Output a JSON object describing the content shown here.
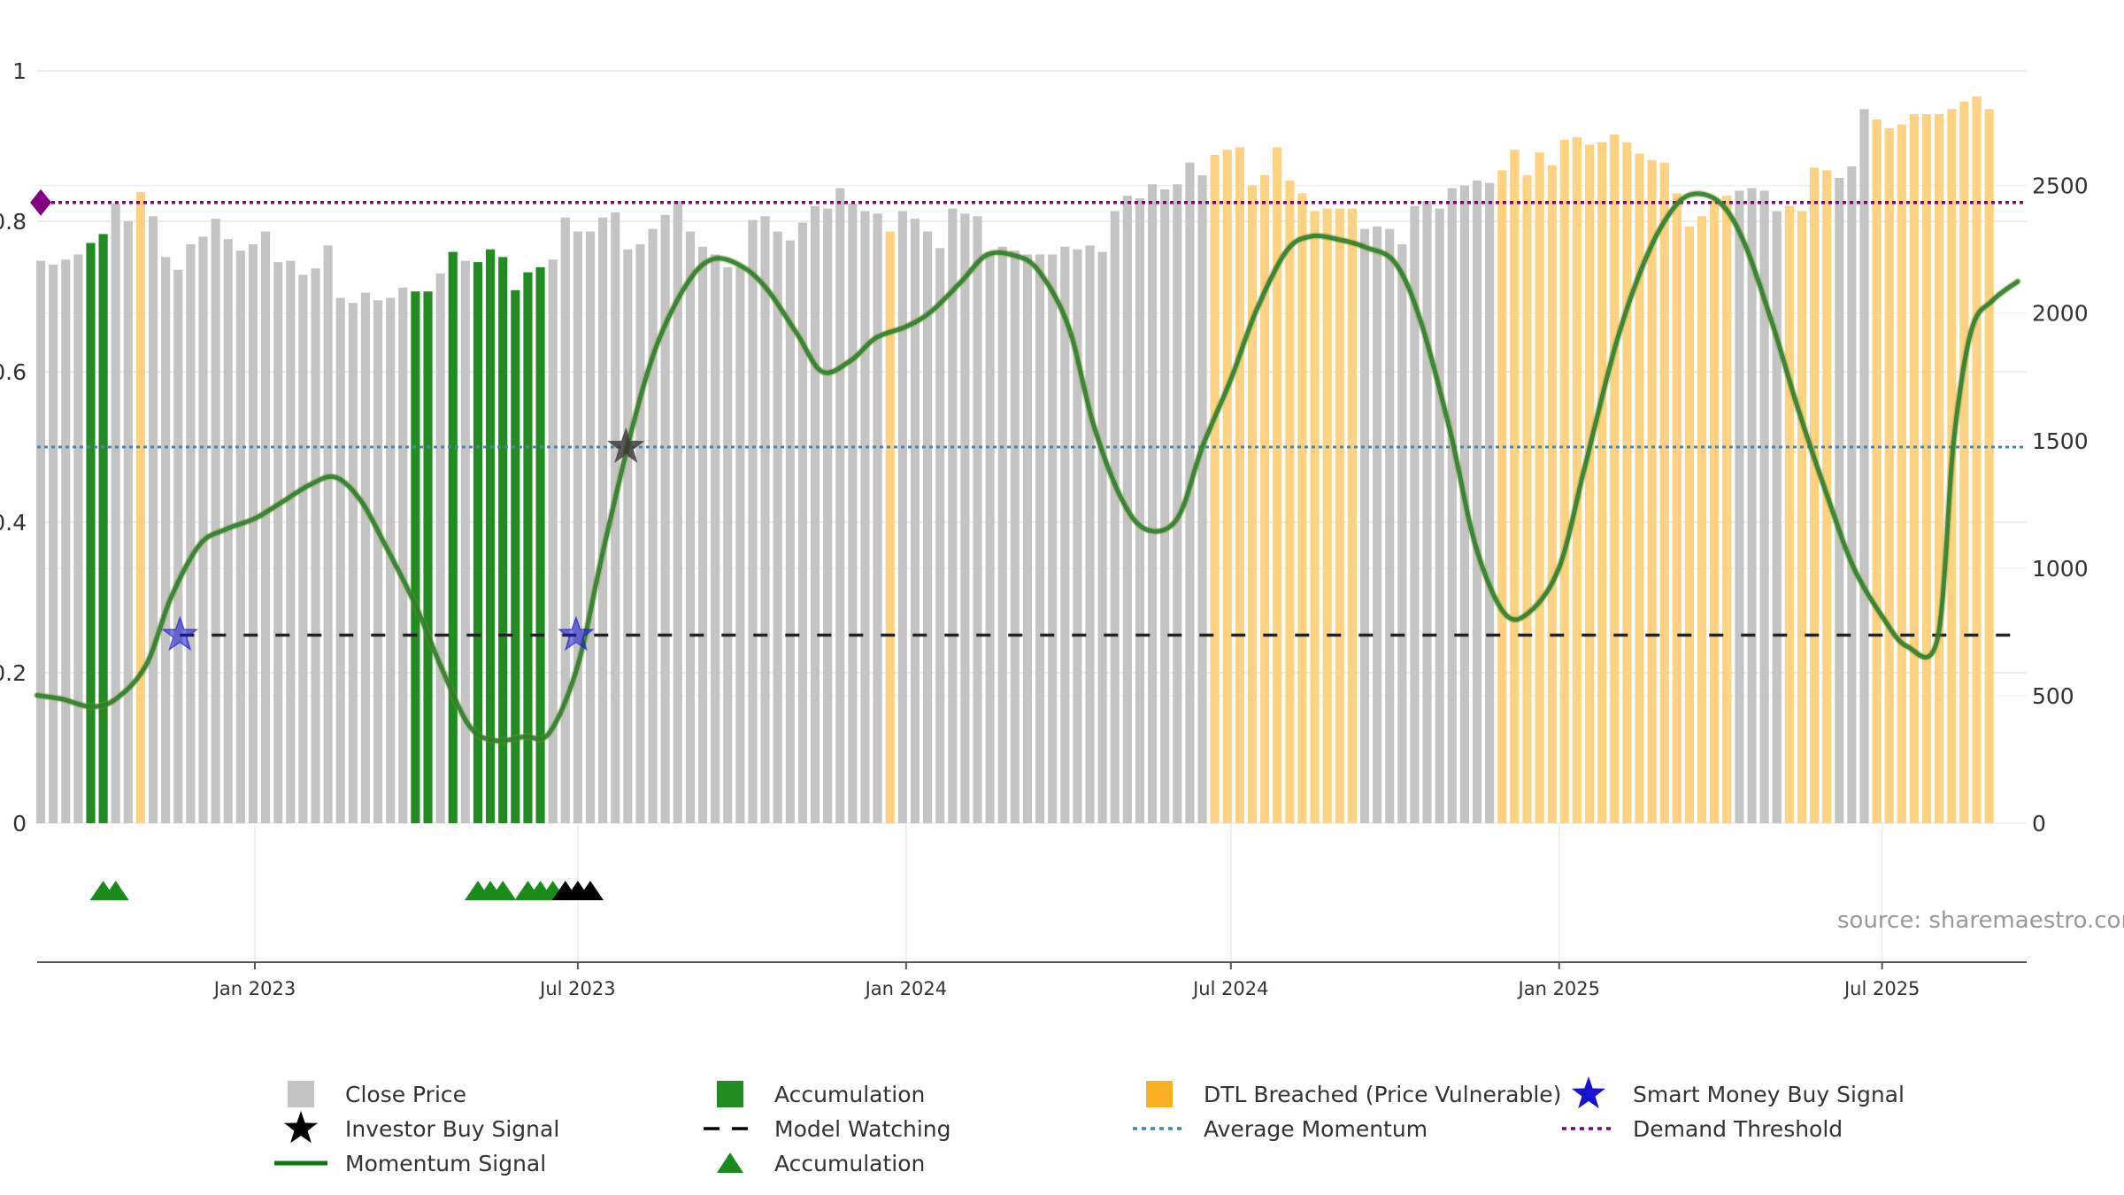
{
  "chart_data": {
    "type": "bar",
    "source": "source: sharemaestro.com",
    "colors": {
      "close_price": "#c4c4c4",
      "accumulation": "#228b22",
      "dtl_breached": "#fdd283",
      "momentum": "#2e7d32",
      "momentum_highlight": "#7a9a10",
      "average_momentum": "#4a86a8",
      "demand_threshold": "#800080",
      "model_watching": "#222222",
      "smart_money": "#1515d0",
      "investor_star": "#333333",
      "triangle_green": "#1a8a1a",
      "triangle_black": "#000000"
    },
    "left_axis": {
      "min": 0,
      "max": 1,
      "ticks": [
        "0",
        "0.2",
        "0.4",
        "0.6",
        "0.8",
        "1"
      ]
    },
    "right_axis": {
      "min": 0,
      "max": 2950,
      "ticks": [
        "0",
        "500",
        "1000",
        "1500",
        "2000",
        "2500"
      ]
    },
    "x_axis": {
      "start": "2022-09-01",
      "end": "2025-09-20",
      "ticks": [
        {
          "date": "2023-01-01",
          "label": "Jan 2023"
        },
        {
          "date": "2023-07-01",
          "label": "Jul 2023"
        },
        {
          "date": "2024-01-01",
          "label": "Jan 2024"
        },
        {
          "date": "2024-07-01",
          "label": "Jul 2024"
        },
        {
          "date": "2025-01-01",
          "label": "Jan 2025"
        },
        {
          "date": "2025-07-01",
          "label": "Jul 2025"
        }
      ]
    },
    "close_price": {
      "start": "2022-09-03",
      "interval_days": 7,
      "values": [
        2205,
        2190,
        2210,
        2230,
        2275,
        2310,
        2430,
        2360,
        2475,
        2380,
        2220,
        2170,
        2270,
        2300,
        2370,
        2290,
        2245,
        2270,
        2320,
        2200,
        2205,
        2150,
        2175,
        2265,
        2060,
        2040,
        2080,
        2050,
        2060,
        2100,
        2085,
        2085,
        2155,
        2240,
        2205,
        2200,
        2250,
        2220,
        2090,
        2160,
        2180,
        2210,
        2375,
        2320,
        2320,
        2375,
        2395,
        2250,
        2270,
        2330,
        2385,
        2440,
        2320,
        2260,
        2230,
        2180,
        2180,
        2365,
        2380,
        2320,
        2285,
        2355,
        2420,
        2410,
        2490,
        2430,
        2400,
        2390,
        2320,
        2400,
        2370,
        2320,
        2255,
        2410,
        2390,
        2380,
        2240,
        2260,
        2245,
        2230,
        2230,
        2230,
        2260,
        2250,
        2265,
        2240,
        2400,
        2460,
        2450,
        2505,
        2485,
        2505,
        2590,
        2540,
        2620,
        2640,
        2650,
        2500,
        2540,
        2650,
        2520,
        2470,
        2400,
        2410,
        2410,
        2410,
        2330,
        2340,
        2330,
        2270,
        2420,
        2440,
        2410,
        2490,
        2500,
        2520,
        2510,
        2560,
        2640,
        2540,
        2630,
        2580,
        2680,
        2690,
        2660,
        2670,
        2700,
        2670,
        2625,
        2600,
        2590,
        2470,
        2340,
        2380,
        2440,
        2460,
        2480,
        2490,
        2480,
        2400,
        2420,
        2400,
        2570,
        2560,
        2530,
        2575,
        2800,
        2760,
        2725,
        2740,
        2780,
        2780,
        2780,
        2800,
        2830,
        2850,
        2800
      ],
      "categories": "GGGGAAGGDGGGGGGGGGGGGGGGGGGGGGAAGAGAAAAAAGGGGGGGGGGGGGGGGGGGGGGGGGGGDGGGGGGGGGGGGGGGGGGGGGGGGGDDDDDDDDDDDDGGGGGGGGGGGDDDDDDDDDDDDDDDDDDDGGGGDDDDGGGDDDDDDDDDDDDDD"
    },
    "momentum_signal": {
      "points": [
        [
          "2022-09-01",
          0.17
        ],
        [
          "2022-09-15",
          0.165
        ],
        [
          "2022-10-01",
          0.155
        ],
        [
          "2022-10-15",
          0.165
        ],
        [
          "2022-11-01",
          0.21
        ],
        [
          "2022-11-15",
          0.3
        ],
        [
          "2022-12-01",
          0.37
        ],
        [
          "2022-12-15",
          0.39
        ],
        [
          "2023-01-01",
          0.405
        ],
        [
          "2023-01-15",
          0.425
        ],
        [
          "2023-02-01",
          0.45
        ],
        [
          "2023-02-15",
          0.46
        ],
        [
          "2023-03-01",
          0.43
        ],
        [
          "2023-03-15",
          0.37
        ],
        [
          "2023-04-01",
          0.29
        ],
        [
          "2023-04-15",
          0.21
        ],
        [
          "2023-05-01",
          0.13
        ],
        [
          "2023-05-15",
          0.11
        ],
        [
          "2023-06-01",
          0.115
        ],
        [
          "2023-06-15",
          0.12
        ],
        [
          "2023-07-01",
          0.21
        ],
        [
          "2023-07-15",
          0.36
        ],
        [
          "2023-08-01",
          0.53
        ],
        [
          "2023-08-15",
          0.64
        ],
        [
          "2023-09-01",
          0.72
        ],
        [
          "2023-09-15",
          0.75
        ],
        [
          "2023-10-01",
          0.74
        ],
        [
          "2023-10-15",
          0.71
        ],
        [
          "2023-11-01",
          0.65
        ],
        [
          "2023-11-15",
          0.6
        ],
        [
          "2023-12-01",
          0.615
        ],
        [
          "2023-12-15",
          0.645
        ],
        [
          "2024-01-01",
          0.66
        ],
        [
          "2024-01-15",
          0.68
        ],
        [
          "2024-02-01",
          0.72
        ],
        [
          "2024-02-15",
          0.755
        ],
        [
          "2024-03-01",
          0.755
        ],
        [
          "2024-03-15",
          0.735
        ],
        [
          "2024-04-01",
          0.66
        ],
        [
          "2024-04-15",
          0.53
        ],
        [
          "2024-05-01",
          0.43
        ],
        [
          "2024-05-15",
          0.39
        ],
        [
          "2024-06-01",
          0.405
        ],
        [
          "2024-06-15",
          0.5
        ],
        [
          "2024-07-01",
          0.59
        ],
        [
          "2024-07-15",
          0.68
        ],
        [
          "2024-08-01",
          0.76
        ],
        [
          "2024-08-15",
          0.78
        ],
        [
          "2024-09-01",
          0.775
        ],
        [
          "2024-09-15",
          0.765
        ],
        [
          "2024-10-01",
          0.745
        ],
        [
          "2024-10-15",
          0.67
        ],
        [
          "2024-11-01",
          0.52
        ],
        [
          "2024-11-15",
          0.37
        ],
        [
          "2024-12-01",
          0.28
        ],
        [
          "2024-12-15",
          0.28
        ],
        [
          "2025-01-01",
          0.34
        ],
        [
          "2025-01-15",
          0.47
        ],
        [
          "2025-02-01",
          0.63
        ],
        [
          "2025-02-15",
          0.73
        ],
        [
          "2025-03-01",
          0.8
        ],
        [
          "2025-03-15",
          0.835
        ],
        [
          "2025-04-01",
          0.825
        ],
        [
          "2025-04-15",
          0.77
        ],
        [
          "2025-05-01",
          0.66
        ],
        [
          "2025-05-15",
          0.55
        ],
        [
          "2025-06-01",
          0.43
        ],
        [
          "2025-06-15",
          0.34
        ],
        [
          "2025-07-01",
          0.275
        ],
        [
          "2025-07-15",
          0.235
        ],
        [
          "2025-08-01",
          0.245
        ],
        [
          "2025-08-10",
          0.505
        ],
        [
          "2025-08-20",
          0.655
        ],
        [
          "2025-09-01",
          0.695
        ],
        [
          "2025-09-15",
          0.72
        ]
      ]
    },
    "average_momentum": 0.5,
    "demand_threshold": 0.825,
    "demand_threshold_marker_date": "2022-09-03",
    "model_watching": {
      "value": 0.25,
      "start": "2022-11-20",
      "end": "2025-09-20"
    },
    "smart_money_signals": [
      {
        "date": "2022-11-20",
        "value": 0.25
      },
      {
        "date": "2023-06-30",
        "value": 0.25
      }
    ],
    "investor_buy_signals": [
      {
        "date": "2023-07-28",
        "value": 0.5
      }
    ],
    "accumulation_triangles": [
      {
        "date": "2022-10-08",
        "color": "green"
      },
      {
        "date": "2022-10-15",
        "color": "green"
      },
      {
        "date": "2023-05-06",
        "color": "green"
      },
      {
        "date": "2023-05-13",
        "color": "green"
      },
      {
        "date": "2023-05-20",
        "color": "green"
      },
      {
        "date": "2023-06-03",
        "color": "green"
      },
      {
        "date": "2023-06-10",
        "color": "green"
      },
      {
        "date": "2023-06-17",
        "color": "green"
      },
      {
        "date": "2023-06-24",
        "color": "black"
      },
      {
        "date": "2023-07-01",
        "color": "black"
      },
      {
        "date": "2023-07-08",
        "color": "black"
      }
    ],
    "legend": [
      {
        "key": "close_price",
        "label": "Close Price"
      },
      {
        "key": "accumulation_bar",
        "label": "Accumulation"
      },
      {
        "key": "dtl",
        "label": "DTL Breached (Price Vulnerable)"
      },
      {
        "key": "smart_money",
        "label": "Smart Money Buy Signal"
      },
      {
        "key": "investor",
        "label": "Investor Buy Signal"
      },
      {
        "key": "model_watching",
        "label": "Model Watching"
      },
      {
        "key": "avg_momentum",
        "label": "Average Momentum"
      },
      {
        "key": "demand_threshold",
        "label": "Demand Threshold"
      },
      {
        "key": "momentum",
        "label": "Momentum Signal"
      },
      {
        "key": "accumulation_triangle",
        "label": "Accumulation"
      }
    ]
  }
}
